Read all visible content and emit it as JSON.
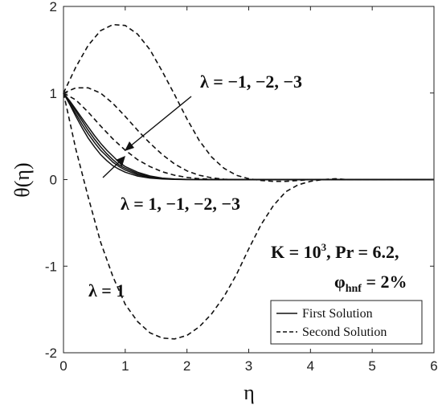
{
  "chart_data": {
    "type": "line",
    "xlabel": "η",
    "ylabel": "θ(η)",
    "xlim": [
      0,
      6
    ],
    "ylim": [
      -2,
      2
    ],
    "xticks": [
      "0",
      "1",
      "2",
      "3",
      "4",
      "5",
      "6"
    ],
    "yticks": [
      "2",
      "1",
      "0",
      "-1",
      "-2"
    ],
    "grid": false,
    "legend_position": "bottom-right",
    "legend": [
      "First Solution",
      "Second Solution"
    ],
    "series": [
      {
        "group": "First Solution",
        "label": "λ = 1",
        "style": "solid",
        "x": [
          0,
          0.1,
          0.2,
          0.3,
          0.4,
          0.5,
          0.6,
          0.7,
          0.8,
          0.9,
          1.0,
          1.2,
          1.4,
          1.6,
          1.8,
          2.0,
          2.5,
          3.0,
          6.0
        ],
        "y": [
          1,
          0.87,
          0.73,
          0.6,
          0.48,
          0.38,
          0.29,
          0.22,
          0.16,
          0.12,
          0.085,
          0.04,
          0.018,
          0.007,
          0.002,
          0,
          0,
          0,
          0
        ]
      },
      {
        "group": "First Solution",
        "label": "λ = -1",
        "style": "solid",
        "x": [
          0,
          0.1,
          0.2,
          0.3,
          0.4,
          0.5,
          0.6,
          0.7,
          0.8,
          0.9,
          1.0,
          1.2,
          1.4,
          1.6,
          1.8,
          2.0,
          2.5,
          3.0,
          6.0
        ],
        "y": [
          1,
          0.88,
          0.76,
          0.64,
          0.53,
          0.43,
          0.34,
          0.27,
          0.2,
          0.15,
          0.11,
          0.055,
          0.025,
          0.01,
          0.004,
          0.001,
          0,
          0,
          0
        ]
      },
      {
        "group": "First Solution",
        "label": "λ = -2",
        "style": "solid",
        "x": [
          0,
          0.1,
          0.2,
          0.3,
          0.4,
          0.5,
          0.6,
          0.7,
          0.8,
          0.9,
          1.0,
          1.2,
          1.4,
          1.6,
          1.8,
          2.0,
          2.5,
          3.0,
          6.0
        ],
        "y": [
          1,
          0.9,
          0.79,
          0.68,
          0.57,
          0.47,
          0.38,
          0.3,
          0.23,
          0.17,
          0.13,
          0.07,
          0.033,
          0.014,
          0.005,
          0.002,
          0,
          0,
          0
        ]
      },
      {
        "group": "First Solution",
        "label": "λ = -3",
        "style": "solid",
        "x": [
          0,
          0.1,
          0.2,
          0.3,
          0.4,
          0.5,
          0.6,
          0.7,
          0.8,
          0.9,
          1.0,
          1.2,
          1.4,
          1.6,
          1.8,
          2.0,
          2.5,
          3.0,
          6.0
        ],
        "y": [
          1,
          0.91,
          0.81,
          0.71,
          0.61,
          0.51,
          0.42,
          0.34,
          0.27,
          0.2,
          0.15,
          0.085,
          0.042,
          0.018,
          0.007,
          0.003,
          0,
          0,
          0
        ]
      },
      {
        "group": "Second Solution",
        "label": "λ = 1",
        "style": "dashed",
        "x": [
          0,
          0.2,
          0.4,
          0.6,
          0.8,
          1.0,
          1.2,
          1.4,
          1.6,
          1.8,
          2.0,
          2.2,
          2.4,
          2.6,
          2.8,
          3.0,
          3.2,
          3.4,
          3.6,
          3.8,
          4.0,
          4.2,
          4.4,
          4.6,
          6.0
        ],
        "y": [
          1,
          0.35,
          -0.2,
          -0.72,
          -1.12,
          -1.44,
          -1.64,
          -1.77,
          -1.83,
          -1.84,
          -1.8,
          -1.7,
          -1.55,
          -1.35,
          -1.1,
          -0.8,
          -0.52,
          -0.3,
          -0.14,
          -0.06,
          -0.02,
          0,
          0.01,
          0,
          0
        ]
      },
      {
        "group": "Second Solution",
        "label": "λ = -1",
        "style": "dashed",
        "x": [
          0,
          0.2,
          0.4,
          0.6,
          0.8,
          1.0,
          1.2,
          1.4,
          1.6,
          1.8,
          2.0,
          2.2,
          2.4,
          2.6,
          2.8,
          3.0,
          3.2,
          3.4,
          3.6,
          3.8,
          4.0,
          4.2,
          4.4,
          4.6,
          6.0
        ],
        "y": [
          1,
          1.3,
          1.55,
          1.72,
          1.79,
          1.78,
          1.68,
          1.5,
          1.25,
          0.98,
          0.7,
          0.45,
          0.26,
          0.13,
          0.05,
          0.01,
          -0.01,
          -0.02,
          -0.02,
          -0.01,
          0,
          0,
          0,
          0,
          0
        ]
      },
      {
        "group": "Second Solution",
        "label": "λ = -2",
        "style": "dashed",
        "x": [
          0,
          0.2,
          0.4,
          0.6,
          0.8,
          1.0,
          1.2,
          1.4,
          1.6,
          1.8,
          2.0,
          2.2,
          2.4,
          2.6,
          2.8,
          3.0,
          3.2,
          3.4,
          3.6,
          3.8,
          6.0
        ],
        "y": [
          1,
          1.06,
          1.06,
          1.0,
          0.88,
          0.73,
          0.57,
          0.42,
          0.29,
          0.18,
          0.1,
          0.05,
          0.02,
          0.005,
          0,
          0,
          0,
          0,
          0,
          0,
          0
        ]
      },
      {
        "group": "Second Solution",
        "label": "λ = -3",
        "style": "dashed",
        "x": [
          0,
          0.2,
          0.4,
          0.6,
          0.8,
          1.0,
          1.2,
          1.4,
          1.6,
          1.8,
          2.0,
          2.2,
          2.4,
          2.6,
          2.8,
          3.0,
          6.0
        ],
        "y": [
          1,
          0.92,
          0.78,
          0.62,
          0.47,
          0.34,
          0.23,
          0.15,
          0.09,
          0.05,
          0.025,
          0.01,
          0.004,
          0.001,
          0,
          0,
          0
        ]
      }
    ],
    "annotations": {
      "top": "λ = −1, −2, −3",
      "middle": "λ = 1, −1, −2, −3",
      "bottom": "λ = 1",
      "params_line1": "K = 10",
      "params_exp": "3",
      "params_line1_tail": ", Pr = 6.2,",
      "params_line2": "φ",
      "params_line2_sub": "hnf",
      "params_line2_tail": " = 2%"
    }
  }
}
